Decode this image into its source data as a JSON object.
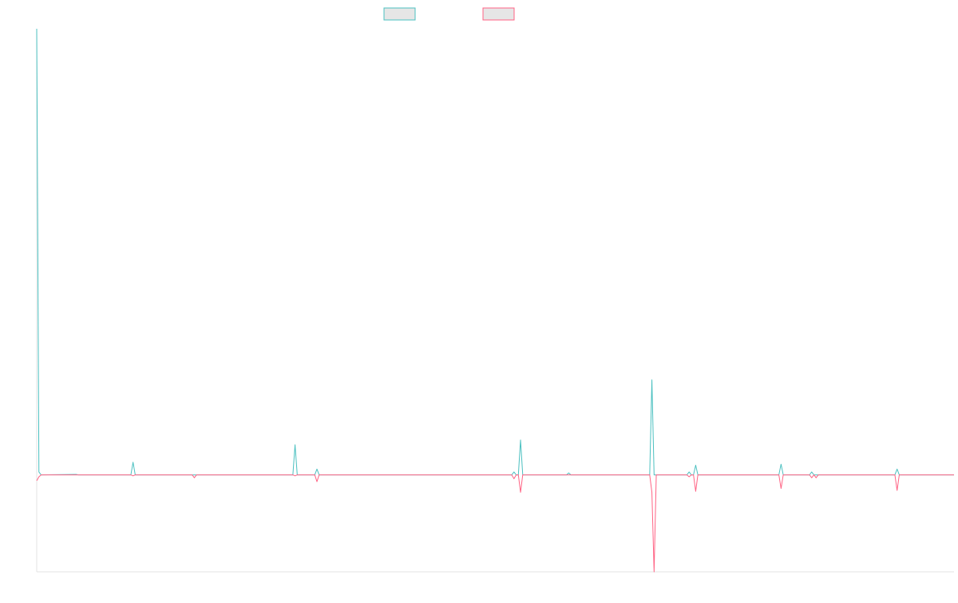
{
  "chart_data": {
    "type": "line",
    "title": "",
    "xlabel": "",
    "ylabel": "",
    "x_count": 420,
    "ylim": [
      -100,
      460
    ],
    "grid": false,
    "legend_position": "top-center",
    "series": [
      {
        "color": "#4bc0c0",
        "legend_fill": "#e6e6e6",
        "baseline": 0,
        "values": [
          [
            0,
            460
          ],
          [
            1,
            3
          ],
          [
            2,
            0
          ],
          [
            18,
            0.5
          ],
          [
            19,
            0
          ],
          [
            43,
            0
          ],
          [
            44,
            13
          ],
          [
            45,
            0
          ],
          [
            117,
            0
          ],
          [
            118,
            31
          ],
          [
            119,
            0
          ],
          [
            127,
            0
          ],
          [
            128,
            6
          ],
          [
            129,
            0
          ],
          [
            217,
            0
          ],
          [
            218,
            3
          ],
          [
            219,
            0
          ],
          [
            220,
            0
          ],
          [
            221,
            36
          ],
          [
            222,
            0
          ],
          [
            242,
            0
          ],
          [
            243,
            2
          ],
          [
            244,
            0
          ],
          [
            280,
            0
          ],
          [
            281,
            98
          ],
          [
            282,
            0
          ],
          [
            297,
            0
          ],
          [
            298,
            3
          ],
          [
            299,
            0
          ],
          [
            300,
            0
          ],
          [
            301,
            10
          ],
          [
            302,
            0
          ],
          [
            339,
            0
          ],
          [
            340,
            11
          ],
          [
            341,
            0
          ],
          [
            353,
            0
          ],
          [
            354,
            3
          ],
          [
            355,
            0
          ],
          [
            392,
            0
          ],
          [
            393,
            6
          ],
          [
            394,
            0
          ]
        ]
      },
      {
        "color": "#ff6384",
        "legend_fill": "#e6e6e6",
        "baseline": 0,
        "values": [
          [
            0,
            -6
          ],
          [
            1,
            -2
          ],
          [
            2,
            0
          ],
          [
            43,
            0
          ],
          [
            44,
            -1
          ],
          [
            45,
            0
          ],
          [
            71,
            0
          ],
          [
            72,
            -3
          ],
          [
            73,
            0
          ],
          [
            74,
            0
          ],
          [
            117,
            0
          ],
          [
            118,
            -1
          ],
          [
            119,
            0
          ],
          [
            127,
            0
          ],
          [
            128,
            -7
          ],
          [
            129,
            0
          ],
          [
            217,
            0
          ],
          [
            218,
            -4
          ],
          [
            219,
            0
          ],
          [
            220,
            0
          ],
          [
            221,
            -18
          ],
          [
            222,
            0
          ],
          [
            280,
            0
          ],
          [
            281,
            -18
          ],
          [
            282,
            -100
          ],
          [
            283,
            0
          ],
          [
            297,
            0
          ],
          [
            298,
            -2
          ],
          [
            299,
            0
          ],
          [
            300,
            0
          ],
          [
            301,
            -17
          ],
          [
            302,
            0
          ],
          [
            339,
            0
          ],
          [
            340,
            -14
          ],
          [
            341,
            0
          ],
          [
            353,
            0
          ],
          [
            354,
            -3
          ],
          [
            355,
            0
          ],
          [
            356,
            -3
          ],
          [
            357,
            0
          ],
          [
            392,
            0
          ],
          [
            393,
            -16
          ],
          [
            394,
            0
          ]
        ]
      }
    ]
  }
}
